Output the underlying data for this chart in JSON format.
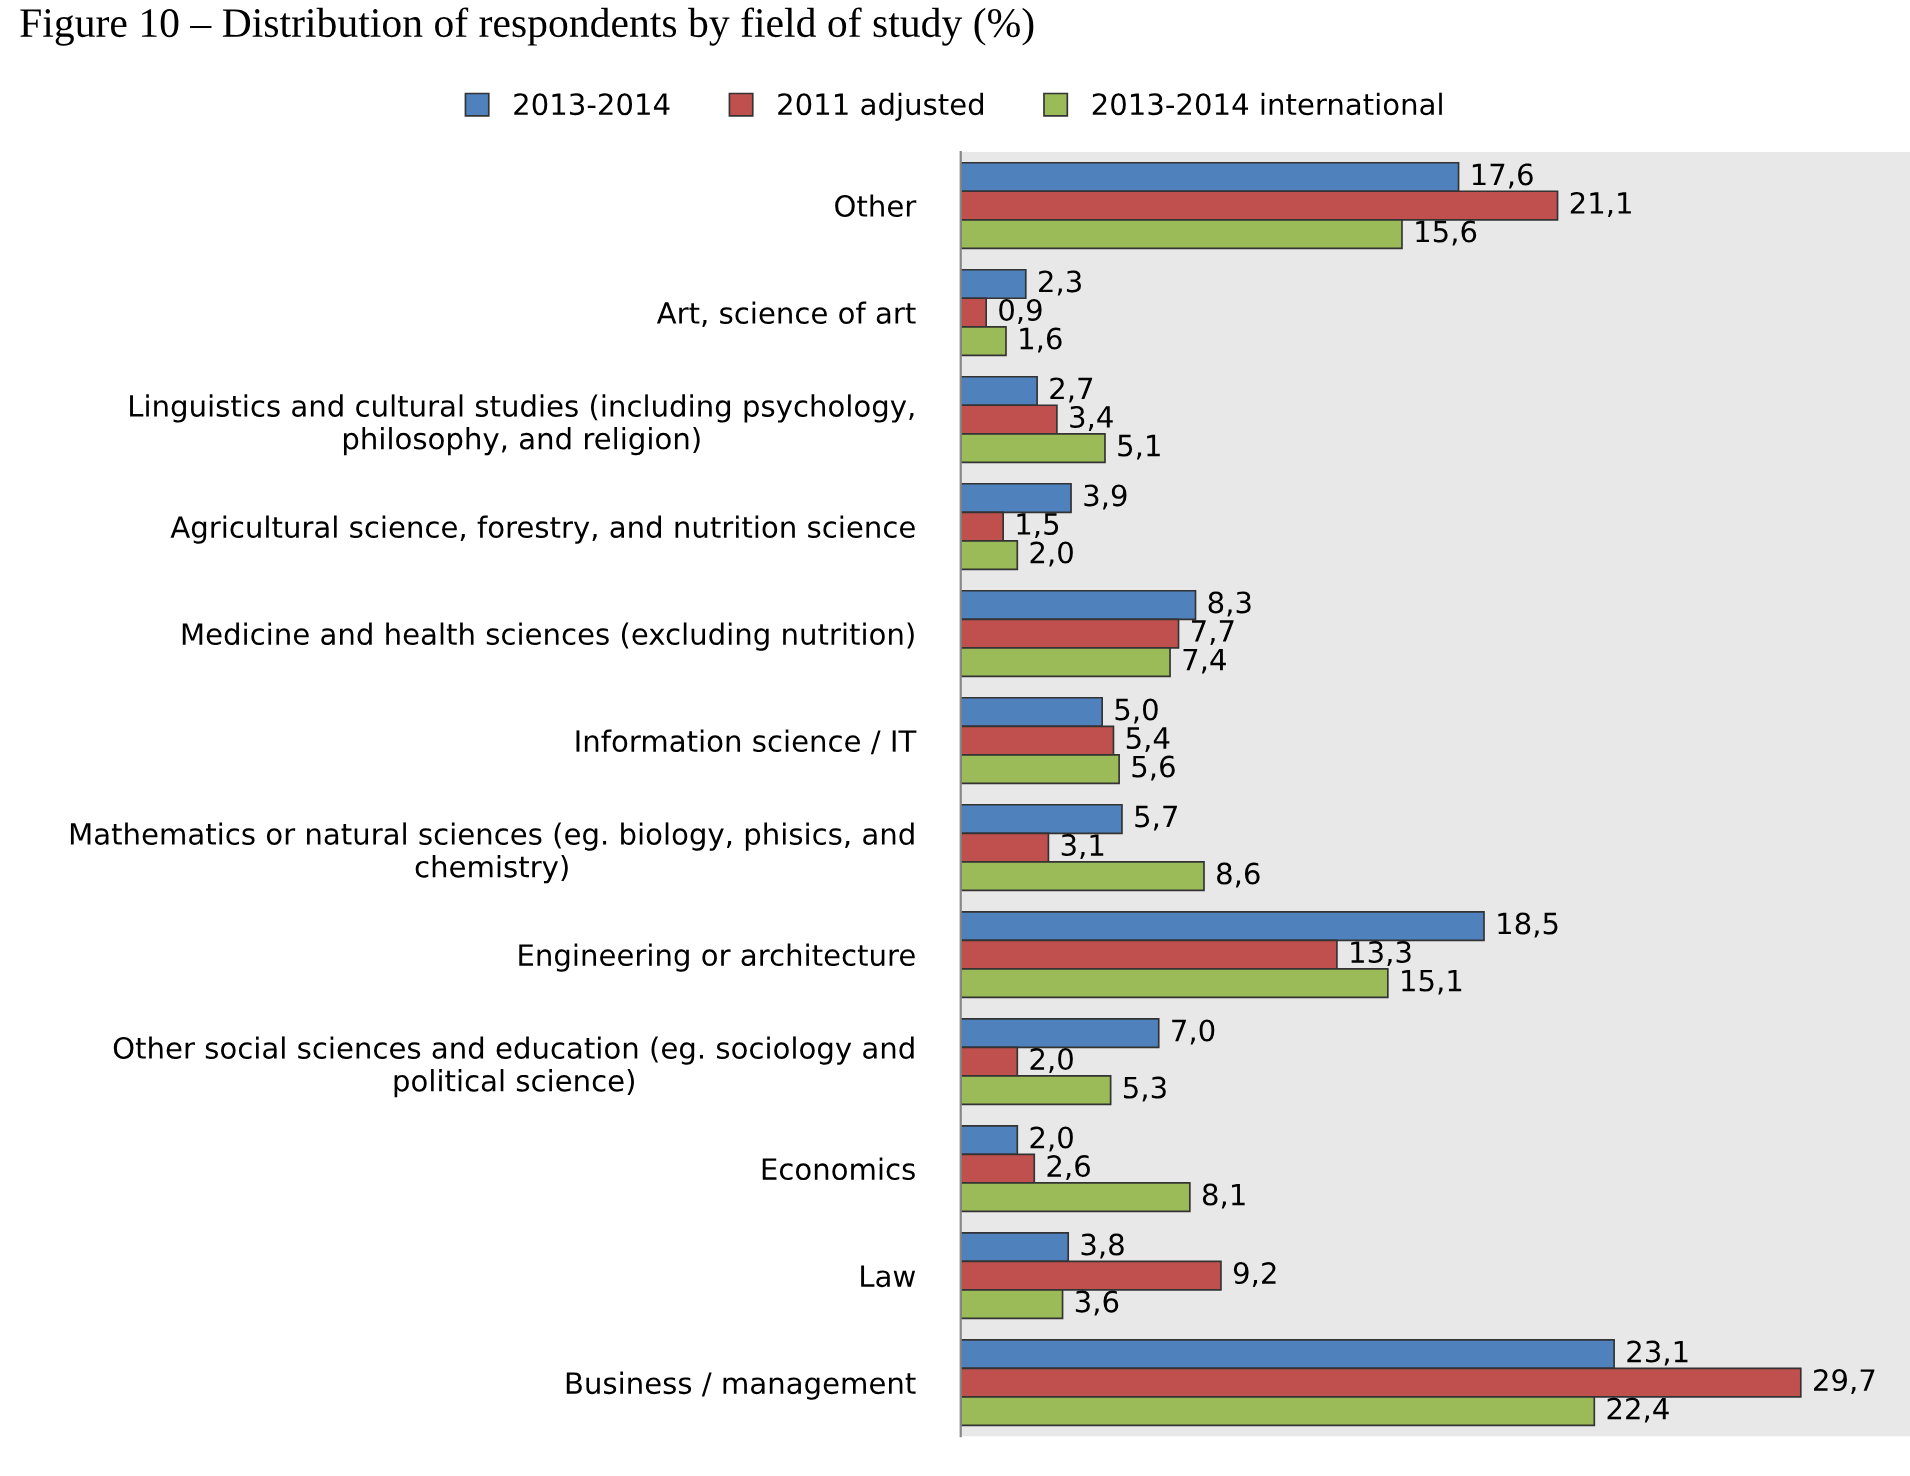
{
  "chart_data": {
    "type": "bar",
    "orientation": "horizontal",
    "title": "Figure 10 – Distribution of respondents by field of study (%)",
    "categories": [
      "Other",
      "Art, science of art",
      "Linguistics and cultural studies (including psychology,\nphilosophy, and religion)",
      "Agricultural science, forestry, and nutrition science",
      "Medicine and health sciences (excluding nutrition)",
      "Information science / IT",
      "Mathematics or natural sciences (eg. biology, phisics, and\nchemistry)",
      "Engineering or architecture",
      "Other social sciences and education (eg. sociology and\npolitical science)",
      "Economics",
      "Law",
      "Business / management"
    ],
    "series": [
      {
        "name": "2013-2014",
        "color": "#4f81bd",
        "values": [
          17.6,
          2.3,
          2.7,
          3.9,
          8.3,
          5.0,
          5.7,
          18.5,
          7.0,
          2.0,
          3.8,
          23.1
        ],
        "value_labels": [
          "17,6",
          "2,3",
          "2,7",
          "3,9",
          "8,3",
          "5,0",
          "5,7",
          "18,5",
          "7,0",
          "2,0",
          "3,8",
          "23,1"
        ]
      },
      {
        "name": "2011 adjusted",
        "color": "#c0504d",
        "values": [
          21.1,
          0.9,
          3.4,
          1.5,
          7.7,
          5.4,
          3.1,
          13.3,
          2.0,
          2.6,
          9.2,
          29.7
        ],
        "value_labels": [
          "21,1",
          "0,9",
          "3,4",
          "1,5",
          "7,7",
          "5,4",
          "3,1",
          "13,3",
          "2,0",
          "2,6",
          "9,2",
          "29,7"
        ]
      },
      {
        "name": "2013-2014 international",
        "color": "#9bbb59",
        "values": [
          15.6,
          1.6,
          5.1,
          2.0,
          7.4,
          5.6,
          8.6,
          15.1,
          5.3,
          8.1,
          3.6,
          22.4
        ],
        "value_labels": [
          "15,6",
          "1,6",
          "5,1",
          "2,0",
          "7,4",
          "5,6",
          "8,6",
          "15,1",
          "5,3",
          "8,1",
          "3,6",
          "22,4"
        ]
      }
    ],
    "legend": "top",
    "grid": false
  }
}
